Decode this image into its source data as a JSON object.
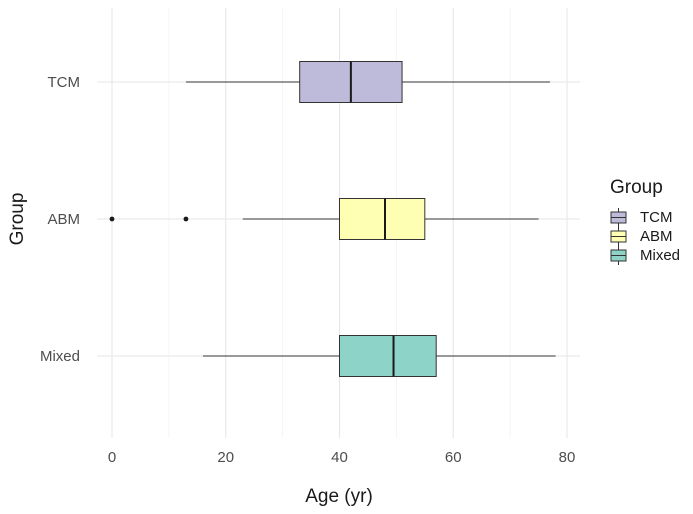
{
  "chart_data": {
    "type": "boxplot",
    "orientation": "horizontal",
    "title": "",
    "xlabel": "Age (yr)",
    "ylabel": "Group",
    "xlim": [
      -3,
      81
    ],
    "x_ticks": [
      0,
      20,
      40,
      60,
      80
    ],
    "categories": [
      "TCM",
      "ABM",
      "Mixed"
    ],
    "legend": {
      "title": "Group",
      "position": "right",
      "entries": [
        "TCM",
        "ABM",
        "Mixed"
      ]
    },
    "grid": true,
    "series": [
      {
        "name": "TCM",
        "color": "#bebada",
        "whisker_low": 13,
        "q1": 33,
        "median": 42,
        "q3": 51,
        "whisker_high": 77,
        "outliers": []
      },
      {
        "name": "ABM",
        "color": "#ffffb3",
        "whisker_low": 23,
        "q1": 40,
        "median": 48,
        "q3": 55,
        "whisker_high": 75,
        "outliers": [
          0,
          13
        ]
      },
      {
        "name": "Mixed",
        "color": "#8dd3c7",
        "whisker_low": 16,
        "q1": 40,
        "median": 49.5,
        "q3": 57,
        "whisker_high": 78,
        "outliers": []
      }
    ]
  }
}
